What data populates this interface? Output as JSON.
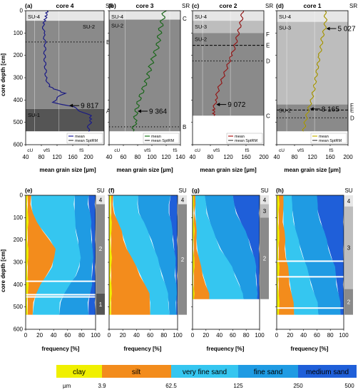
{
  "colors": {
    "clay": "#f0f000",
    "silt": "#f38c1c",
    "very_fine_sand": "#35c6f0",
    "fine_sand": "#1f9be3",
    "medium_sand": "#1f5fd9",
    "su4": "#e6e6e6",
    "su3": "#bdbdbd",
    "su2": "#8a8a8a",
    "su1": "#555555"
  },
  "chart_data": [
    {
      "id": "a",
      "type": "line",
      "panel_label": "(a)",
      "title": "core 4",
      "sr_label": "SR",
      "xlim": [
        40,
        240
      ],
      "ylim": [
        600,
        0
      ],
      "depth_bottom": 540,
      "xticks": [
        "40",
        "80",
        "120",
        "160",
        "200"
      ],
      "yticks": [
        "0",
        "100",
        "200",
        "300",
        "400",
        "500",
        "600"
      ],
      "class_labels": [
        "cU",
        "vfS",
        "fS"
      ],
      "units": [
        {
          "label": "SU-4",
          "from": 0,
          "to": 45
        },
        {
          "label": "SU-2",
          "from": 45,
          "to": 440
        },
        {
          "label": "SU-1",
          "from": 440,
          "to": 540
        }
      ],
      "sr_markers": [
        {
          "label": "B",
          "depth": 140,
          "style": "dotted"
        },
        {
          "label": "A",
          "depth": 448,
          "style": "none"
        }
      ],
      "line_color": "#1a1aa0",
      "profile": [
        [
          0,
          95
        ],
        [
          30,
          92
        ],
        [
          60,
          85
        ],
        [
          100,
          86
        ],
        [
          150,
          90
        ],
        [
          200,
          88
        ],
        [
          250,
          90
        ],
        [
          300,
          92
        ],
        [
          340,
          100
        ],
        [
          370,
          140
        ],
        [
          390,
          120
        ],
        [
          410,
          110
        ],
        [
          430,
          160
        ],
        [
          450,
          180
        ],
        [
          470,
          205
        ],
        [
          500,
          205
        ],
        [
          520,
          200
        ],
        [
          540,
          200
        ]
      ],
      "age_annotations": [
        {
          "label": "9 817",
          "depth": 425
        }
      ],
      "legend": [
        "mean",
        "mean SptRM"
      ]
    },
    {
      "id": "b",
      "type": "line",
      "panel_label": "(b)",
      "title": "core 3",
      "sr_label": "SR",
      "xlim": [
        40,
        140
      ],
      "ylim": [
        600,
        0
      ],
      "depth_bottom": 540,
      "xticks": [
        "40",
        "60",
        "80",
        "100",
        "120",
        "140"
      ],
      "yticks": [],
      "class_labels": [
        "cU",
        "vfS",
        "fS"
      ],
      "units": [
        {
          "label": "SU-4",
          "from": 0,
          "to": 40
        },
        {
          "label": "SU-2",
          "from": 40,
          "to": 540
        }
      ],
      "sr_markers": [
        {
          "label": "C",
          "depth": 35,
          "style": "none"
        },
        {
          "label": "B",
          "depth": 520,
          "style": "dotted"
        }
      ],
      "line_color": "#1a7a1a",
      "profile": [
        [
          0,
          118
        ],
        [
          40,
          115
        ],
        [
          80,
          112
        ],
        [
          120,
          110
        ],
        [
          160,
          108
        ],
        [
          200,
          103
        ],
        [
          250,
          98
        ],
        [
          300,
          94
        ],
        [
          350,
          88
        ],
        [
          400,
          82
        ],
        [
          450,
          78
        ],
        [
          500,
          76
        ],
        [
          540,
          74
        ]
      ],
      "age_annotations": [
        {
          "label": "9 364",
          "depth": 450
        }
      ],
      "legend": [
        "mean",
        "mean SptRM"
      ]
    },
    {
      "id": "c",
      "type": "line",
      "panel_label": "(c)",
      "title": "core 2",
      "sr_label": "SR",
      "xlim": [
        40,
        200
      ],
      "ylim": [
        600,
        0
      ],
      "depth_bottom": 470,
      "xticks": [
        "40",
        "80",
        "120",
        "160",
        "200"
      ],
      "yticks": [],
      "class_labels": [
        "cU",
        "vfS",
        "fS"
      ],
      "units": [
        {
          "label": "SU-4",
          "from": 0,
          "to": 45
        },
        {
          "label": "SU-3",
          "from": 45,
          "to": 100
        },
        {
          "label": "SU-2",
          "from": 100,
          "to": 470
        }
      ],
      "sr_markers": [
        {
          "label": "F",
          "depth": 105,
          "style": "none"
        },
        {
          "label": "E",
          "depth": 155,
          "style": "dashed"
        },
        {
          "label": "D",
          "depth": 225,
          "style": "dotted"
        },
        {
          "label": "C",
          "depth": 470,
          "style": "none"
        }
      ],
      "line_color": "#b01818",
      "profile": [
        [
          0,
          152
        ],
        [
          40,
          150
        ],
        [
          80,
          145
        ],
        [
          120,
          140
        ],
        [
          160,
          135
        ],
        [
          200,
          128
        ],
        [
          250,
          118
        ],
        [
          300,
          108
        ],
        [
          350,
          98
        ],
        [
          400,
          92
        ],
        [
          440,
          88
        ],
        [
          470,
          88
        ]
      ],
      "age_annotations": [
        {
          "label": "9 072",
          "depth": 420
        }
      ],
      "legend": [
        "mean",
        "mean SptRM"
      ]
    },
    {
      "id": "d",
      "type": "line",
      "panel_label": "(d)",
      "title": "core 1",
      "sr_label": "SR",
      "xlim": [
        40,
        200
      ],
      "ylim": [
        600,
        0
      ],
      "depth_bottom": 540,
      "xticks": [
        "40",
        "80",
        "120",
        "160",
        "200"
      ],
      "yticks": [],
      "class_labels": [
        "cU",
        "vfS",
        "fS"
      ],
      "units": [
        {
          "label": "SU-4",
          "from": 0,
          "to": 50
        },
        {
          "label": "SU-3",
          "from": 50,
          "to": 420
        },
        {
          "label": "SU-2",
          "from": 420,
          "to": 540
        }
      ],
      "sr_markers": [
        {
          "label": "F",
          "depth": 425,
          "style": "none"
        },
        {
          "label": "E",
          "depth": 445,
          "style": "dashed"
        },
        {
          "label": "D",
          "depth": 480,
          "style": "dotted"
        }
      ],
      "line_color": "#c8b400",
      "profile": [
        [
          0,
          148
        ],
        [
          40,
          150
        ],
        [
          80,
          148
        ],
        [
          120,
          142
        ],
        [
          160,
          140
        ],
        [
          200,
          136
        ],
        [
          250,
          132
        ],
        [
          300,
          128
        ],
        [
          350,
          124
        ],
        [
          400,
          118
        ],
        [
          450,
          110
        ],
        [
          500,
          104
        ],
        [
          540,
          100
        ]
      ],
      "age_annotations": [
        {
          "label": "5 027",
          "depth": 80
        },
        {
          "label": "8 165",
          "depth": 440
        }
      ],
      "legend": [
        "mean",
        "mean SptRM"
      ]
    },
    {
      "id": "e",
      "type": "area",
      "panel_label": "(e)",
      "xlim": [
        0,
        100
      ],
      "ylim": [
        600,
        0
      ],
      "depth_bottom": 535,
      "su_header": "SU",
      "xticks": [
        "0",
        "20",
        "40",
        "60",
        "80",
        "100"
      ],
      "yticks": [
        "0",
        "100",
        "200",
        "300",
        "400",
        "500",
        "600"
      ],
      "su_bar": [
        {
          "label": "4",
          "from": 0,
          "to": 40
        },
        {
          "label": "2",
          "from": 40,
          "to": 440
        },
        {
          "label": "1",
          "from": 440,
          "to": 535
        }
      ],
      "gaps": [
        385,
        445,
        455
      ],
      "depth": [
        0,
        40,
        80,
        120,
        160,
        200,
        240,
        280,
        320,
        360,
        400,
        440,
        480,
        535
      ],
      "clay": [
        3,
        3,
        3,
        3,
        3,
        3,
        3,
        3,
        3,
        3,
        3,
        3,
        3,
        3
      ],
      "silt": [
        8,
        8,
        10,
        15,
        25,
        35,
        42,
        40,
        38,
        30,
        20,
        15,
        12,
        10
      ],
      "very_fine_sand": [
        70,
        70,
        70,
        70,
        72,
        75,
        76,
        78,
        77,
        72,
        62,
        55,
        50,
        48
      ],
      "fine_sand": [
        90,
        90,
        92,
        93,
        94,
        95,
        95,
        96,
        96,
        95,
        94,
        92,
        90,
        90
      ]
    },
    {
      "id": "f",
      "type": "area",
      "panel_label": "(f)",
      "xlim": [
        0,
        100
      ],
      "ylim": [
        600,
        0
      ],
      "depth_bottom": 535,
      "su_header": "SU",
      "xticks": [
        "0",
        "20",
        "40",
        "60",
        "80",
        "100"
      ],
      "yticks": [],
      "su_bar": [
        {
          "label": "4",
          "from": 0,
          "to": 40
        },
        {
          "label": "2",
          "from": 40,
          "to": 535
        }
      ],
      "gaps": [],
      "depth": [
        0,
        40,
        80,
        120,
        160,
        200,
        240,
        280,
        320,
        360,
        400,
        440,
        480,
        535
      ],
      "clay": [
        3,
        3,
        3,
        3,
        3,
        3,
        3,
        3,
        3,
        3,
        3,
        3,
        3,
        3
      ],
      "silt": [
        6,
        6,
        8,
        12,
        18,
        22,
        26,
        32,
        40,
        46,
        52,
        58,
        60,
        60
      ],
      "very_fine_sand": [
        42,
        42,
        44,
        50,
        56,
        62,
        66,
        70,
        74,
        78,
        82,
        85,
        87,
        88
      ],
      "fine_sand": [
        90,
        88,
        88,
        90,
        92,
        94,
        95,
        96,
        97,
        97,
        98,
        98,
        98,
        98
      ]
    },
    {
      "id": "g",
      "type": "area",
      "panel_label": "(g)",
      "xlim": [
        0,
        100
      ],
      "ylim": [
        600,
        0
      ],
      "depth_bottom": 465,
      "su_header": "SU",
      "xticks": [
        "0",
        "20",
        "40",
        "60",
        "80",
        "100"
      ],
      "yticks": [],
      "su_bar": [
        {
          "label": "4",
          "from": 0,
          "to": 40
        },
        {
          "label": "3",
          "from": 40,
          "to": 100
        },
        {
          "label": "2",
          "from": 100,
          "to": 465
        }
      ],
      "gaps": [],
      "depth": [
        0,
        40,
        80,
        120,
        160,
        200,
        240,
        280,
        320,
        360,
        400,
        440,
        465
      ],
      "clay": [
        2,
        2,
        2,
        2,
        2,
        2,
        2,
        2,
        2,
        2,
        2,
        2,
        2
      ],
      "silt": [
        4,
        4,
        4,
        5,
        5,
        6,
        7,
        9,
        12,
        16,
        20,
        24,
        25
      ],
      "very_fine_sand": [
        18,
        20,
        22,
        26,
        30,
        36,
        42,
        50,
        58,
        64,
        70,
        74,
        76
      ],
      "fine_sand": [
        60,
        62,
        66,
        72,
        78,
        84,
        88,
        92,
        94,
        95,
        96,
        96,
        96
      ]
    },
    {
      "id": "h",
      "type": "area",
      "panel_label": "(h)",
      "xlim": [
        0,
        100
      ],
      "ylim": [
        600,
        0
      ],
      "depth_bottom": 535,
      "su_header": "SU",
      "xticks": [
        "0",
        "20",
        "40",
        "60",
        "80",
        "100"
      ],
      "yticks": [],
      "su_bar": [
        {
          "label": "4",
          "from": 0,
          "to": 50
        },
        {
          "label": "3",
          "from": 50,
          "to": 420
        },
        {
          "label": "2",
          "from": 420,
          "to": 535
        }
      ],
      "gaps": [
        295,
        365,
        505
      ],
      "depth": [
        0,
        40,
        80,
        120,
        160,
        200,
        240,
        280,
        320,
        360,
        400,
        440,
        480,
        535
      ],
      "clay": [
        3,
        3,
        3,
        3,
        3,
        3,
        3,
        3,
        3,
        3,
        3,
        3,
        3,
        3
      ],
      "silt": [
        10,
        9,
        10,
        10,
        11,
        12,
        13,
        14,
        16,
        18,
        20,
        22,
        24,
        26
      ],
      "very_fine_sand": [
        22,
        22,
        24,
        26,
        28,
        32,
        36,
        40,
        44,
        48,
        52,
        56,
        60,
        62
      ],
      "fine_sand": [
        60,
        60,
        62,
        66,
        70,
        74,
        78,
        82,
        86,
        88,
        90,
        92,
        94,
        95
      ]
    }
  ],
  "axes": {
    "depth_label": "core depth [cm]",
    "grain_label": "mean grain size [µm]",
    "freq_label": "frequency [%]"
  },
  "legend_bar": {
    "classes": [
      {
        "label": "clay",
        "color": "#f0f000"
      },
      {
        "label": "silt",
        "color": "#f38c1c"
      },
      {
        "label": "very fine sand",
        "color": "#35c6f0"
      },
      {
        "label": "fine sand",
        "color": "#1f9be3"
      },
      {
        "label": "medium sand",
        "color": "#1f5fd9"
      }
    ],
    "unit": "µm",
    "boundaries": [
      "3.9",
      "62.5",
      "125",
      "250",
      "500"
    ]
  }
}
